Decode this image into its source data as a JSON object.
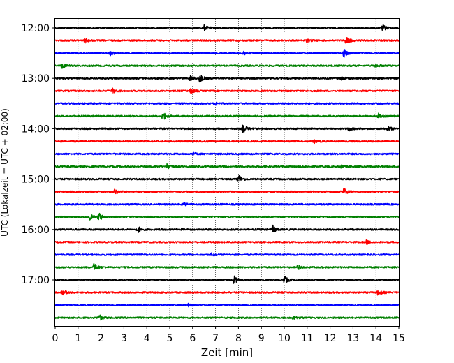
{
  "chart_data": {
    "type": "line",
    "xlabel": "Zeit  [min]",
    "ylabel": "UTC (Lokalzeit = UTC + 02:00)",
    "xlim": [
      0,
      15
    ],
    "x_ticks": [
      "0",
      "1",
      "2",
      "3",
      "4",
      "5",
      "6",
      "7",
      "8",
      "9",
      "10",
      "11",
      "12",
      "13",
      "14",
      "15"
    ],
    "y_ticks": [
      "12:00",
      "13:00",
      "14:00",
      "15:00",
      "16:00",
      "17:00"
    ],
    "vertical_grid": "dotted",
    "trace_interval_min": 15,
    "series_colors": [
      "#000000",
      "#ff0000",
      "#0000ff",
      "#008000"
    ],
    "rows": [
      {
        "start": "12:00",
        "color": "#000000",
        "events": [
          [
            6.5,
            0.6
          ],
          [
            14.3,
            0.7
          ]
        ]
      },
      {
        "start": "12:15",
        "color": "#ff0000",
        "events": [
          [
            1.3,
            0.5
          ],
          [
            12.7,
            0.9
          ],
          [
            11.0,
            0.4
          ]
        ]
      },
      {
        "start": "12:30",
        "color": "#0000ff",
        "events": [
          [
            2.4,
            0.5
          ],
          [
            8.2,
            0.6
          ],
          [
            12.6,
            1.0
          ]
        ]
      },
      {
        "start": "12:45",
        "color": "#008000",
        "events": [
          [
            0.3,
            0.7
          ],
          [
            14.0,
            0.4
          ]
        ]
      },
      {
        "start": "13:00",
        "color": "#000000",
        "events": [
          [
            5.9,
            0.6
          ],
          [
            6.3,
            1.1
          ],
          [
            12.5,
            0.5
          ]
        ]
      },
      {
        "start": "13:15",
        "color": "#ff0000",
        "events": [
          [
            2.5,
            0.6
          ],
          [
            5.9,
            0.7
          ]
        ]
      },
      {
        "start": "13:30",
        "color": "#0000ff",
        "events": [
          [
            7.0,
            0.3
          ]
        ]
      },
      {
        "start": "13:45",
        "color": "#008000",
        "events": [
          [
            4.7,
            1.0
          ],
          [
            14.1,
            0.6
          ]
        ]
      },
      {
        "start": "14:00",
        "color": "#000000",
        "events": [
          [
            8.2,
            1.0
          ],
          [
            12.8,
            0.5
          ],
          [
            14.5,
            0.7
          ]
        ]
      },
      {
        "start": "14:15",
        "color": "#ff0000",
        "events": [
          [
            11.3,
            0.4
          ]
        ]
      },
      {
        "start": "14:30",
        "color": "#0000ff",
        "events": [
          [
            6.0,
            0.3
          ]
        ]
      },
      {
        "start": "14:45",
        "color": "#008000",
        "events": [
          [
            4.9,
            0.8
          ],
          [
            12.5,
            0.4
          ]
        ]
      },
      {
        "start": "15:00",
        "color": "#000000",
        "events": [
          [
            8.0,
            1.1
          ]
        ]
      },
      {
        "start": "15:15",
        "color": "#ff0000",
        "events": [
          [
            2.6,
            0.6
          ],
          [
            12.6,
            0.9
          ]
        ]
      },
      {
        "start": "15:30",
        "color": "#0000ff",
        "events": [
          [
            5.6,
            0.4
          ]
        ]
      },
      {
        "start": "15:45",
        "color": "#008000",
        "events": [
          [
            1.5,
            0.7
          ],
          [
            1.9,
            1.0
          ]
        ]
      },
      {
        "start": "16:00",
        "color": "#000000",
        "events": [
          [
            3.6,
            0.8
          ],
          [
            9.5,
            0.9
          ]
        ]
      },
      {
        "start": "16:15",
        "color": "#ff0000",
        "events": [
          [
            13.6,
            0.5
          ]
        ]
      },
      {
        "start": "16:30",
        "color": "#0000ff",
        "events": [
          [
            6.8,
            0.3
          ]
        ]
      },
      {
        "start": "16:45",
        "color": "#008000",
        "events": [
          [
            1.7,
            1.0
          ],
          [
            10.6,
            0.5
          ]
        ]
      },
      {
        "start": "17:00",
        "color": "#000000",
        "events": [
          [
            7.8,
            1.0
          ],
          [
            10.0,
            0.9
          ]
        ]
      },
      {
        "start": "17:15",
        "color": "#ff0000",
        "events": [
          [
            0.3,
            0.8
          ],
          [
            14.1,
            0.8
          ]
        ]
      },
      {
        "start": "17:30",
        "color": "#0000ff",
        "events": [
          [
            5.8,
            0.3
          ]
        ]
      },
      {
        "start": "17:45",
        "color": "#008000",
        "events": [
          [
            1.9,
            0.9
          ],
          [
            10.4,
            0.5
          ]
        ]
      }
    ]
  }
}
